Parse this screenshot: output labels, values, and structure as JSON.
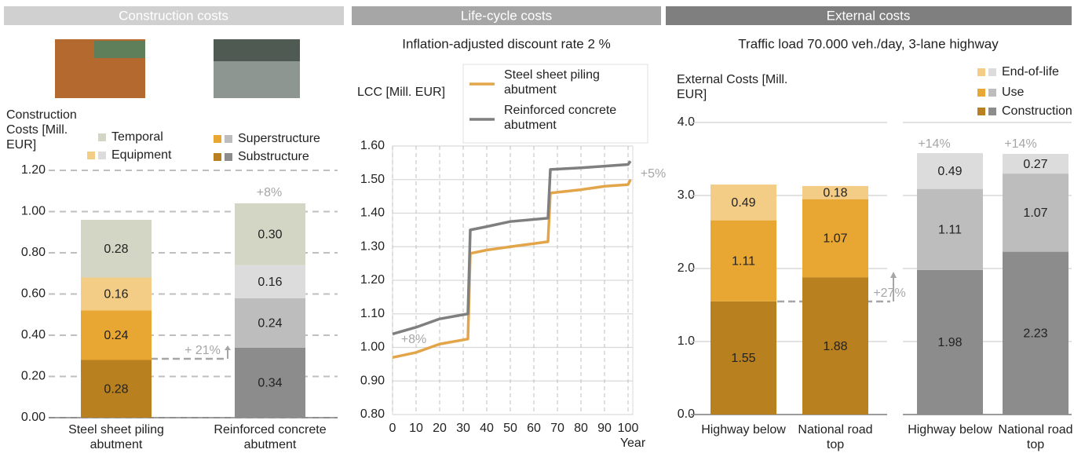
{
  "chart_data": [
    {
      "type": "stacked_bar",
      "title": "Construction costs",
      "y_label": "Construction Costs [Mill. EUR]",
      "categories": [
        "Steel sheet piling abutment",
        "Reinforced concrete abutment"
      ],
      "series": [
        {
          "name": "Substructure",
          "colors": [
            "#b8801e",
            "#8c8c8c"
          ],
          "values": [
            0.28,
            0.34
          ]
        },
        {
          "name": "Superstructure",
          "colors": [
            "#e8a632",
            "#bdbdbd"
          ],
          "values": [
            0.24,
            0.24
          ]
        },
        {
          "name": "Equipment",
          "colors": [
            "#f3cd86",
            "#dcdcdc"
          ],
          "values": [
            0.16,
            0.16
          ]
        },
        {
          "name": "Temporal",
          "colors": [
            "#d4d6c5",
            "#d4d6c5"
          ],
          "values": [
            0.28,
            0.3
          ],
          "value_labels": [
            "0.28",
            "0.30"
          ]
        }
      ],
      "ylim": [
        0,
        1.2
      ],
      "yticks": [
        {
          "value": 0,
          "label": "0.00"
        },
        {
          "value": 0.2,
          "label": "0.20"
        },
        {
          "value": 0.4,
          "label": "0.40"
        },
        {
          "value": 0.6,
          "label": "0.60"
        },
        {
          "value": 0.8,
          "label": "0.80"
        },
        {
          "value": 1,
          "label": "1.00"
        },
        {
          "value": 1.2,
          "label": "1.20"
        }
      ],
      "grid": true,
      "annotations": [
        "+8%",
        "+ 21%"
      ]
    },
    {
      "type": "line",
      "title": "Life-cycle costs",
      "subtitle": "Inflation-adjusted discount rate 2 %",
      "y_label": "LCC [Mill. EUR]",
      "x_label": "Year",
      "x": [
        0,
        10,
        20,
        32,
        33,
        40,
        50,
        66,
        67,
        80,
        90,
        100,
        101
      ],
      "series": [
        {
          "name": "Steel sheet piling abutment",
          "color": "#e3a54a",
          "values": [
            0.97,
            0.985,
            1.01,
            1.025,
            1.28,
            1.29,
            1.3,
            1.315,
            1.46,
            1.47,
            1.48,
            1.485,
            1.5
          ]
        },
        {
          "name": "Reinforced concrete abutment",
          "color": "#7f7f7f",
          "values": [
            1.04,
            1.06,
            1.085,
            1.1,
            1.35,
            1.36,
            1.375,
            1.385,
            1.53,
            1.535,
            1.54,
            1.545,
            1.555
          ]
        }
      ],
      "xlim": [
        0,
        102
      ],
      "xticks": [
        0,
        10,
        20,
        30,
        40,
        50,
        60,
        70,
        80,
        90,
        100
      ],
      "ylim": [
        0.8,
        1.6
      ],
      "yticks": [
        {
          "value": 0.8,
          "label": "0.80"
        },
        {
          "value": 0.9,
          "label": "0.90"
        },
        {
          "value": 1,
          "label": "1.00"
        },
        {
          "value": 1.1,
          "label": "1.10"
        },
        {
          "value": 1.2,
          "label": "1.20"
        },
        {
          "value": 1.3,
          "label": "1.30"
        },
        {
          "value": 1.4,
          "label": "1.40"
        },
        {
          "value": 1.5,
          "label": "1.50"
        },
        {
          "value": 1.6,
          "label": "1.60"
        }
      ],
      "grid": true,
      "legend": "top-right",
      "annotations": [
        "+8%",
        "+5%"
      ]
    },
    {
      "type": "stacked_bar",
      "title": "External costs",
      "subtitle": "Traffic load 70.000 veh./day, 3-lane highway",
      "y_label": "External Costs [Mill. EUR]",
      "categories": [
        "Highway below",
        "National road top",
        "Highway below",
        "National road top"
      ],
      "series": [
        {
          "name": "Construction",
          "colors": [
            "#b8801e",
            "#b8801e",
            "#8c8c8c",
            "#8c8c8c"
          ],
          "values": [
            1.55,
            1.88,
            1.98,
            2.23
          ]
        },
        {
          "name": "Use",
          "colors": [
            "#e8a632",
            "#e8a632",
            "#bdbdbd",
            "#bdbdbd"
          ],
          "values": [
            1.11,
            1.07,
            1.11,
            1.07
          ]
        },
        {
          "name": "End-of-life",
          "colors": [
            "#f3cd86",
            "#f3cd86",
            "#dcdcdc",
            "#dcdcdc"
          ],
          "values": [
            0.49,
            0.18,
            0.49,
            0.27
          ]
        }
      ],
      "ylim": [
        0,
        4
      ],
      "yticks": [
        {
          "value": 0,
          "label": "0.0"
        },
        {
          "value": 1,
          "label": "1.0"
        },
        {
          "value": 2,
          "label": "2.0"
        },
        {
          "value": 3,
          "label": "3.0"
        },
        {
          "value": 4,
          "label": "4.0"
        }
      ],
      "grid": true,
      "annotations": [
        "+27%",
        "+14%",
        "+14%"
      ]
    }
  ]
}
